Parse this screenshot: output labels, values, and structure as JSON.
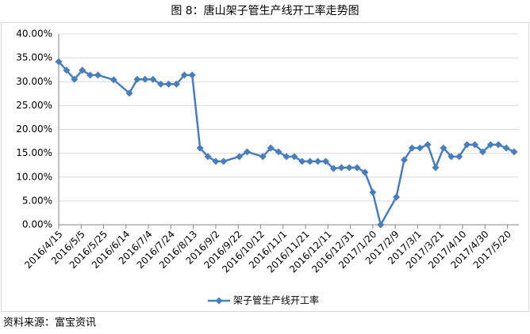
{
  "chart_data": {
    "type": "line",
    "title": "图 8：唐山架子管生产线开工率走势图",
    "source": "资料来源：富宝资讯",
    "x": [
      "2016/4/15",
      "2016/4/22",
      "2016/4/29",
      "2016/5/6",
      "2016/5/13",
      "2016/5/20",
      "2016/6/3",
      "2016/6/17",
      "2016/6/24",
      "2016/7/1",
      "2016/7/8",
      "2016/7/15",
      "2016/7/22",
      "2016/7/29",
      "2016/8/5",
      "2016/8/12",
      "2016/8/19",
      "2016/8/26",
      "2016/9/2",
      "2016/9/9",
      "2016/9/23",
      "2016/9/30",
      "2016/10/14",
      "2016/10/21",
      "2016/10/28",
      "2016/11/4",
      "2016/11/11",
      "2016/11/18",
      "2016/11/25",
      "2016/12/2",
      "2016/12/9",
      "2016/12/16",
      "2016/12/23",
      "2016/12/30",
      "2017/1/6",
      "2017/1/13",
      "2017/1/20",
      "2017/1/27",
      "2017/2/10",
      "2017/2/17",
      "2017/2/24",
      "2017/3/3",
      "2017/3/10",
      "2017/3/17",
      "2017/3/24",
      "2017/3/31",
      "2017/4/7",
      "2017/4/14",
      "2017/4/21",
      "2017/4/28",
      "2017/5/5",
      "2017/5/12",
      "2017/5/19",
      "2017/5/26"
    ],
    "series": [
      {
        "name": "架子管生产线开工率",
        "color": "#4a7ebb",
        "values": [
          34.2,
          32.4,
          30.5,
          32.4,
          31.4,
          31.4,
          30.4,
          27.6,
          30.5,
          30.5,
          30.5,
          29.5,
          29.5,
          29.5,
          31.4,
          31.4,
          16.1,
          14.3,
          13.3,
          13.3,
          14.3,
          15.3,
          14.3,
          16.1,
          15.3,
          14.3,
          14.3,
          13.3,
          13.3,
          13.3,
          13.3,
          11.8,
          12.0,
          12.0,
          12.0,
          11.0,
          6.8,
          0,
          5.8,
          13.6,
          16.1,
          16.1,
          16.8,
          12.0,
          16.1,
          14.3,
          14.3,
          16.8,
          16.8,
          15.3,
          16.8,
          16.8,
          16.1,
          15.3
        ]
      }
    ],
    "xlim": [
      "2016/4/15",
      "2017/5/26"
    ],
    "xticks": [
      "2016/4/15",
      "2016/5/5",
      "2016/5/25",
      "2016/6/14",
      "2016/7/4",
      "2016/7/24",
      "2016/8/13",
      "2016/9/2",
      "2016/9/22",
      "2016/10/12",
      "2016/11/1",
      "2016/11/21",
      "2016/12/11",
      "2016/12/31",
      "2017/1/20",
      "2017/2/9",
      "2017/3/1",
      "2017/3/21",
      "2017/4/10",
      "2017/4/30",
      "2017/5/20"
    ],
    "ylim": [
      0,
      40
    ],
    "yticks": [
      {
        "value": 0,
        "label": "0.00%"
      },
      {
        "value": 5,
        "label": "5.00%"
      },
      {
        "value": 10,
        "label": "10.00%"
      },
      {
        "value": 15,
        "label": "15.00%"
      },
      {
        "value": 20,
        "label": "20.00%"
      },
      {
        "value": 25,
        "label": "25.00%"
      },
      {
        "value": 30,
        "label": "30.00%"
      },
      {
        "value": 35,
        "label": "35.00%"
      },
      {
        "value": 40,
        "label": "40.00%"
      }
    ],
    "grid": true,
    "legend": "bottom"
  }
}
